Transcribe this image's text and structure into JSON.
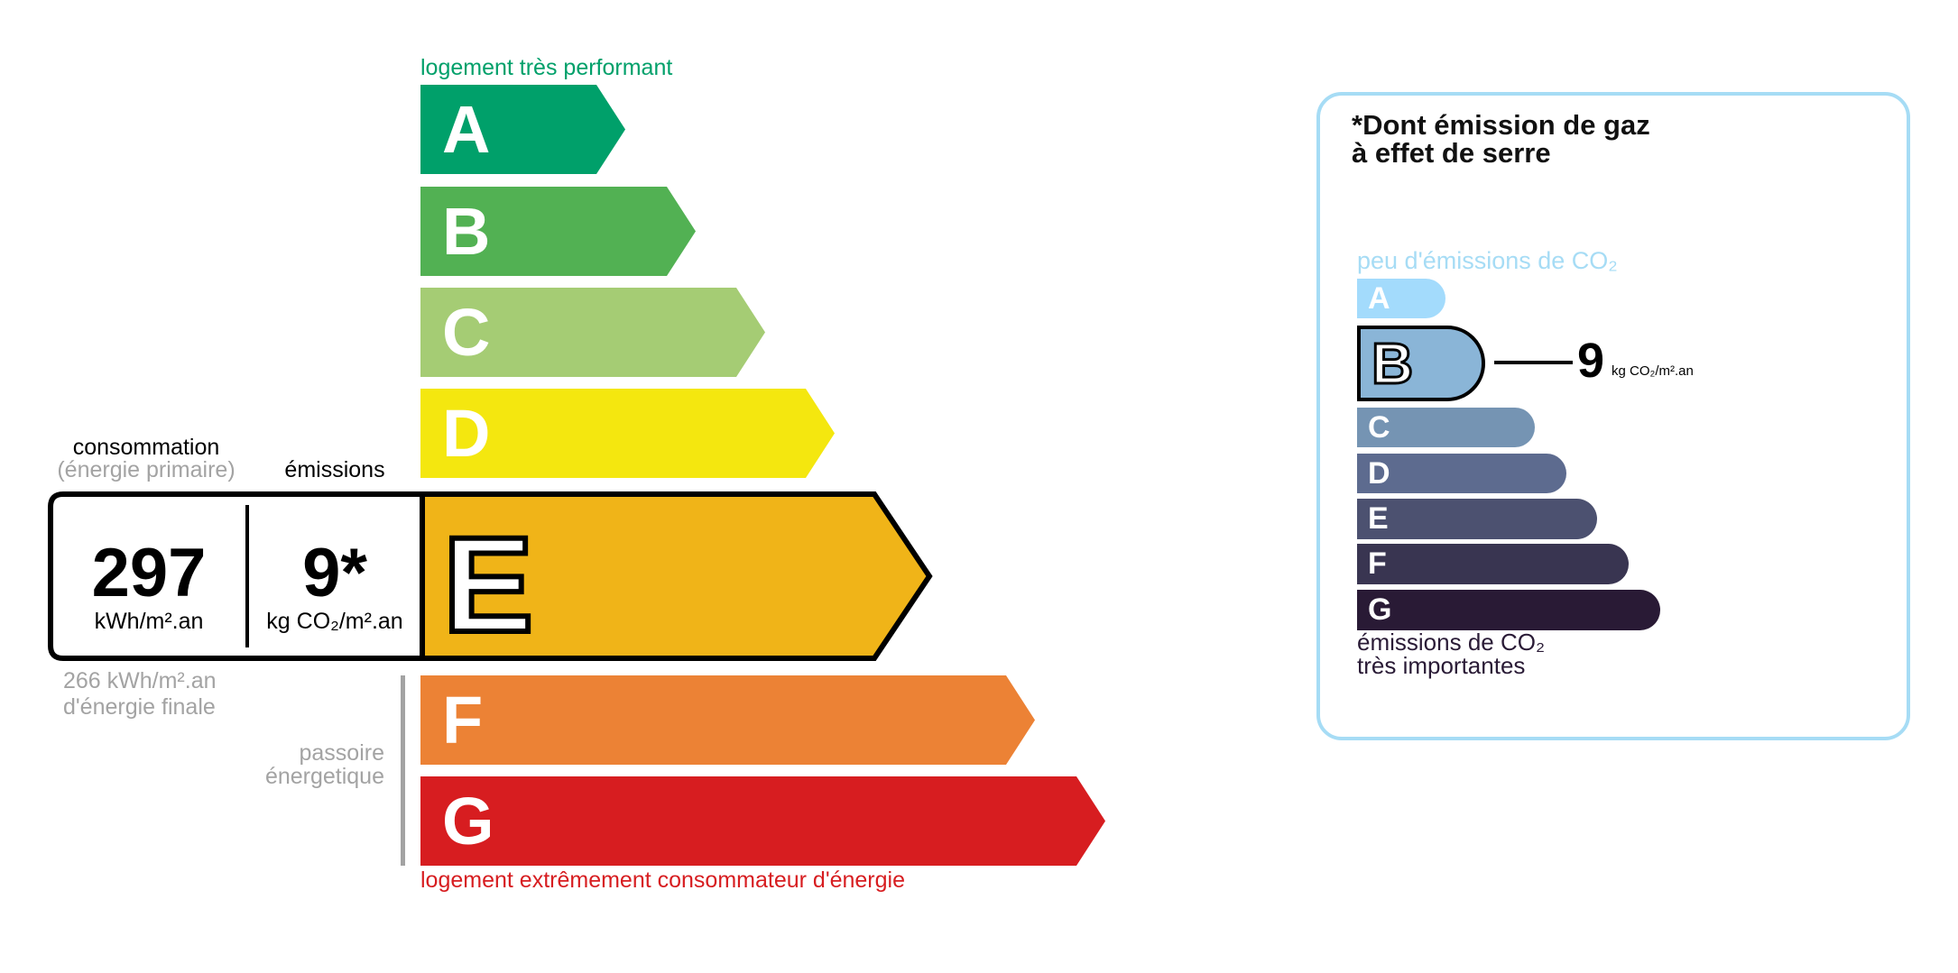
{
  "energy": {
    "top_label": "logement très performant",
    "bottom_label": "logement extrêmement consommateur d'énergie",
    "classes": [
      {
        "letter": "A",
        "color": "#00a06a"
      },
      {
        "letter": "B",
        "color": "#52b153"
      },
      {
        "letter": "C",
        "color": "#a5cc74"
      },
      {
        "letter": "D",
        "color": "#f4e70f"
      },
      {
        "letter": "E",
        "color": "#f0b418"
      },
      {
        "letter": "F",
        "color": "#ec8235"
      },
      {
        "letter": "G",
        "color": "#d71d20"
      }
    ],
    "current_class": "E",
    "consumption_label": "consommation",
    "consumption_sublabel": "(énergie primaire)",
    "emissions_label": "émissions",
    "consumption_value": "297",
    "consumption_unit": "kWh/m².an",
    "emissions_value": "9*",
    "emissions_unit": "kg CO₂/m².an",
    "final_energy_line1": "266 kWh/m².an",
    "final_energy_line2": "d'énergie finale",
    "passoire_line1": "passoire",
    "passoire_line2": "énergetique"
  },
  "ges": {
    "title_line1": "*Dont émission de gaz",
    "title_line2": "à effet de serre",
    "top_label": "peu d'émissions de CO₂",
    "bottom_line1": "émissions de CO₂",
    "bottom_line2": "très importantes",
    "classes": [
      {
        "letter": "A",
        "color": "#a3dbfc"
      },
      {
        "letter": "B",
        "color": "#8ab5d7"
      },
      {
        "letter": "C",
        "color": "#7594b3"
      },
      {
        "letter": "D",
        "color": "#5d6b8f"
      },
      {
        "letter": "E",
        "color": "#4c5170"
      },
      {
        "letter": "F",
        "color": "#393551"
      },
      {
        "letter": "G",
        "color": "#291a35"
      }
    ],
    "current_class": "B",
    "value": "9",
    "unit": "kg CO₂/m².an",
    "border_color": "#a6dcf5"
  }
}
